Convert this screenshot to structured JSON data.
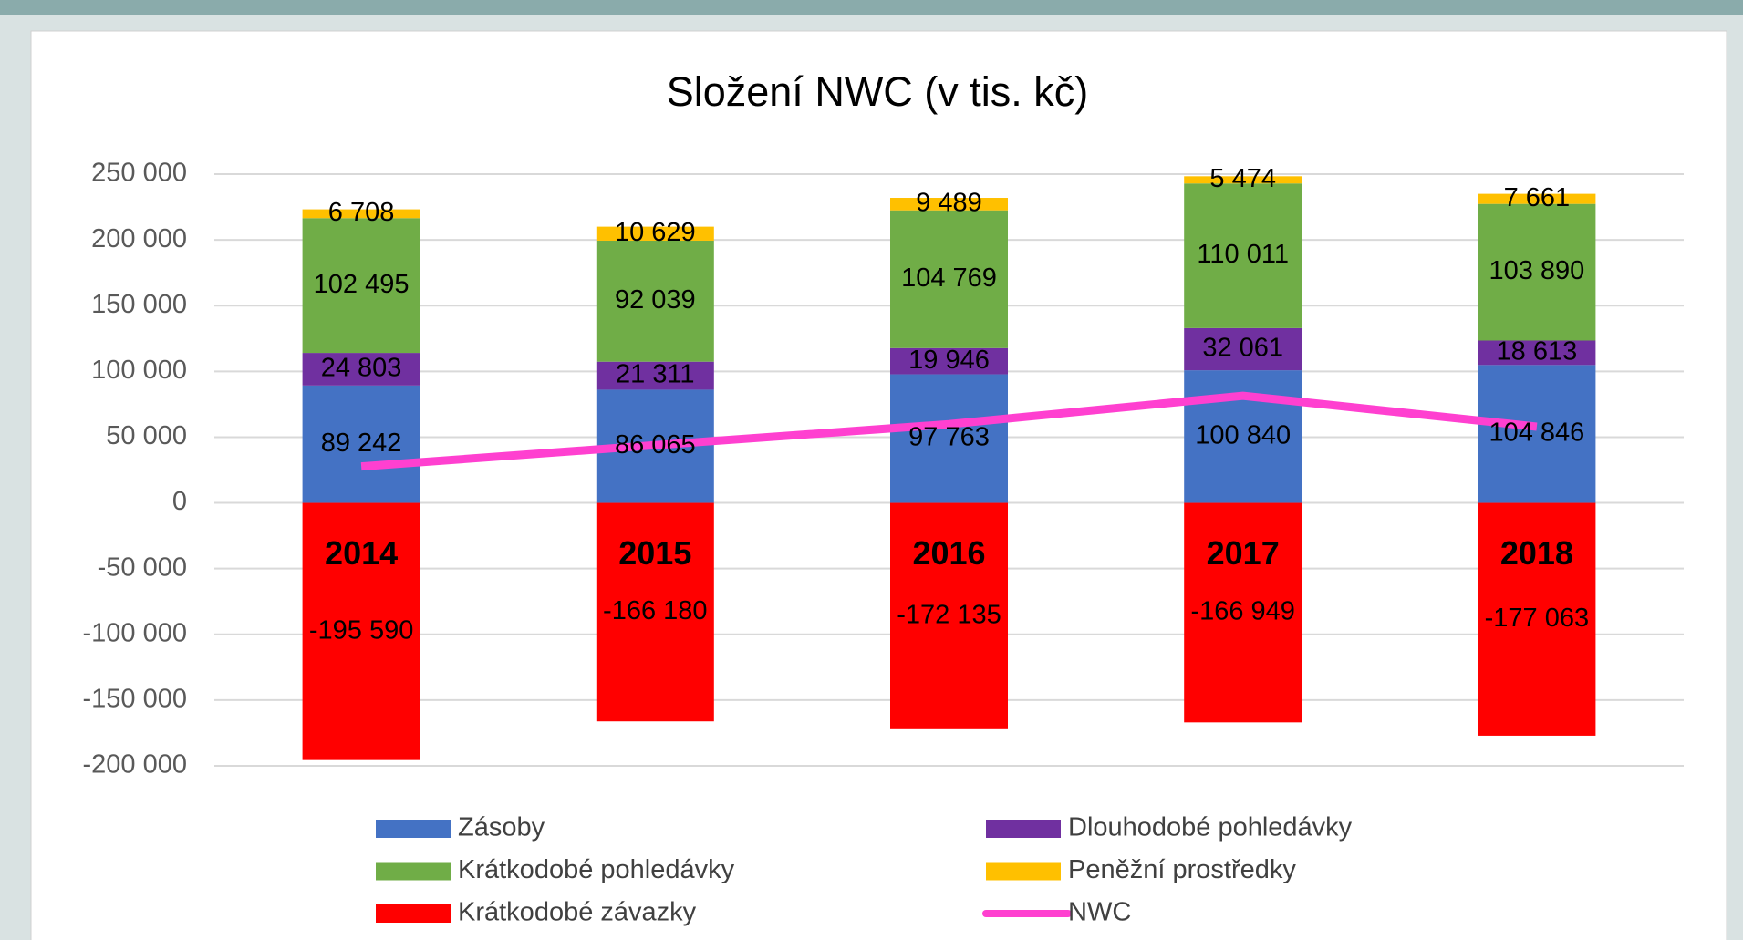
{
  "chart_data": {
    "type": "stacked-bar-line",
    "title": "Složení NWC (v tis. kč)",
    "categories": [
      "2014",
      "2015",
      "2016",
      "2017",
      "2018"
    ],
    "series": [
      {
        "name": "Zásoby",
        "color": "#4472c4",
        "values": [
          89242,
          86065,
          97763,
          100840,
          104846
        ],
        "value_labels": [
          "89 242",
          "86 065",
          "97 763",
          "100 840",
          "104 846"
        ]
      },
      {
        "name": "Dlouhodobé pohledávky",
        "color": "#7030a0",
        "values": [
          24803,
          21311,
          19946,
          32061,
          18613
        ],
        "value_labels": [
          "24 803",
          "21 311",
          "19 946",
          "32 061",
          "18 613"
        ]
      },
      {
        "name": "Krátkodobé pohledávky",
        "color": "#70ad47",
        "values": [
          102495,
          92039,
          104769,
          110011,
          103890
        ],
        "value_labels": [
          "102 495",
          "92 039",
          "104 769",
          "110 011",
          "103 890"
        ]
      },
      {
        "name": "Peněžní prostředky",
        "color": "#ffc000",
        "values": [
          6708,
          10629,
          9489,
          5474,
          7661
        ],
        "value_labels": [
          "6 708",
          "10 629",
          "9 489",
          "5 474",
          "7 661"
        ]
      },
      {
        "name": "Krátkodobé závazky",
        "color": "#ff0000",
        "values": [
          -195590,
          -166180,
          -172135,
          -166949,
          -177063
        ],
        "value_labels": [
          "-195 590",
          "-166 180",
          "-172 135",
          "-166 949",
          "-177 063"
        ]
      },
      {
        "name": "NWC",
        "color": "#ff40d0",
        "type": "line",
        "values": [
          27658,
          43864,
          59832,
          81437,
          57947
        ]
      }
    ],
    "ylim": [
      -200000,
      250000
    ],
    "yticks": [
      {
        "value": -200000,
        "label": "-200 000"
      },
      {
        "value": -150000,
        "label": "-150 000"
      },
      {
        "value": -100000,
        "label": "-100 000"
      },
      {
        "value": -50000,
        "label": "-50 000"
      },
      0,
      {
        "value": 50000,
        "label": "50 000"
      },
      {
        "value": 100000,
        "label": "100 000"
      },
      {
        "value": 150000,
        "label": "150 000"
      },
      {
        "value": 200000,
        "label": "200 000"
      },
      {
        "value": 250000,
        "label": "250 000"
      }
    ],
    "grid": true,
    "legend": "bottom"
  }
}
